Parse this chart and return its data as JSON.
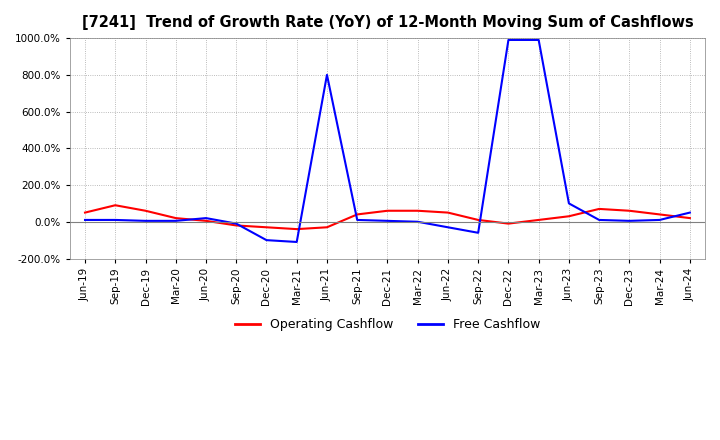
{
  "title": "[7241]  Trend of Growth Rate (YoY) of 12-Month Moving Sum of Cashflows",
  "ylim": [
    -200,
    1000
  ],
  "yticks": [
    -200,
    0,
    200,
    400,
    600,
    800,
    1000
  ],
  "legend_labels": [
    "Operating Cashflow",
    "Free Cashflow"
  ],
  "line_colors": [
    "red",
    "blue"
  ],
  "dates": [
    "Jun-19",
    "Sep-19",
    "Dec-19",
    "Mar-20",
    "Jun-20",
    "Sep-20",
    "Dec-20",
    "Mar-21",
    "Jun-21",
    "Sep-21",
    "Dec-21",
    "Mar-22",
    "Jun-22",
    "Sep-22",
    "Dec-22",
    "Mar-23",
    "Jun-23",
    "Sep-23",
    "Dec-23",
    "Mar-24",
    "Jun-24"
  ],
  "operating_cashflow": [
    50,
    90,
    60,
    20,
    5,
    -20,
    -30,
    -40,
    -30,
    40,
    60,
    60,
    50,
    10,
    -10,
    10,
    30,
    70,
    60,
    40,
    20
  ],
  "free_cashflow": [
    10,
    10,
    5,
    5,
    20,
    -10,
    -100,
    -110,
    800,
    10,
    5,
    0,
    -30,
    -60,
    990,
    990,
    100,
    10,
    5,
    10,
    50
  ]
}
